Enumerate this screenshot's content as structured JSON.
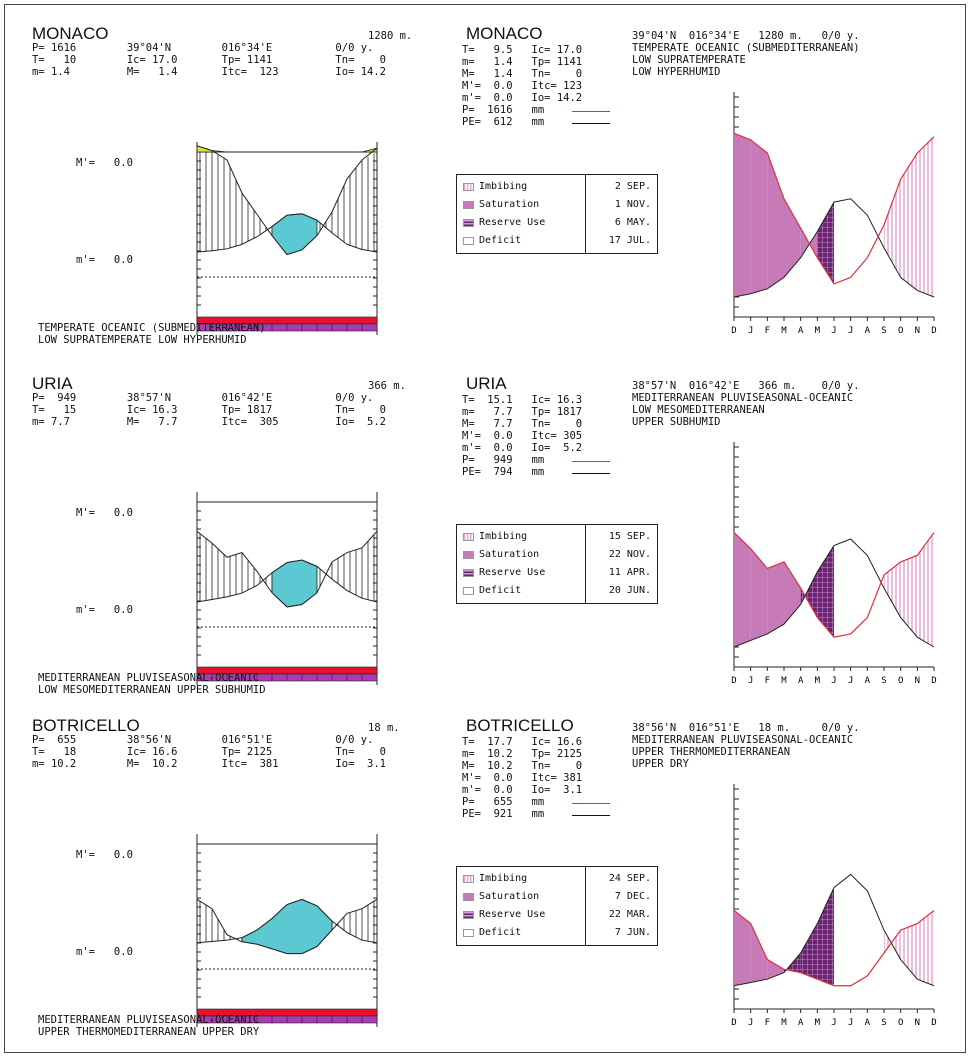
{
  "colors": {
    "precip": "#e0303a",
    "pe": "#111111",
    "surplus": "#e5e62a",
    "dry": "#5bc8d2",
    "saturation": "#c77ab8",
    "imbibing": "#e9a9d8",
    "reserve": "#6a2470",
    "bar_red": "#e8102a",
    "bar_purple": "#a83db0"
  },
  "month_letters": [
    "D",
    "J",
    "F",
    "M",
    "A",
    "M",
    "J",
    "J",
    "A",
    "S",
    "O",
    "N",
    "D"
  ],
  "legend_labels": [
    "Imbibing",
    "Saturation",
    "Reserve Use",
    "Deficit"
  ],
  "icons": [
    "imbibing-swatch",
    "saturation-swatch",
    "reserve-use-swatch",
    "deficit-swatch"
  ],
  "stations": [
    {
      "name": "MONACO",
      "left": {
        "alt": "1280 m.",
        "row1": "P= 1616        39°04'N        016°34'E          0/0 y.",
        "row2": "T=   10        Ic= 17.0       Tp= 1141          Tn=    0",
        "row3": "m= 1.4         M=   1.4       Itc=  123         Io= 14.2",
        "Mp_label": "M'=",
        "Mp_val": "0.0",
        "mp_label": "m'=",
        "mp_val": "0.0",
        "class1": "TEMPERATE OCEANIC (SUBMEDITERRANEAN)",
        "class2": "LOW SUPRATEMPERATE LOW HYPERHUMID"
      },
      "right": {
        "name": "MONACO",
        "stats": "T=   9.5   Ic= 17.0\nm=   1.4   Tp= 1141\nM=   1.4   Tn=    0\nM'=  0.0   Itc= 123\nm'=  0.0   Io= 14.2",
        "p_line": "P=  1616   mm",
        "pe_line": "PE=  612   mm",
        "header": "39°04'N  016°34'E   1280 m.   0/0 y.",
        "class1": "TEMPERATE OCEANIC (SUBMEDITERRANEAN)",
        "class2": "LOW SUPRATEMPERATE",
        "class3": "LOW HYPERHUMID",
        "dates": [
          "2 SEP.",
          "1 NOV.",
          "6 MAY.",
          "17 JUL."
        ]
      },
      "chart_data": {
        "type": "area",
        "x": [
          "D",
          "J",
          "F",
          "M",
          "A",
          "M",
          "J",
          "J",
          "A",
          "S",
          "O",
          "N",
          "D"
        ],
        "series": [
          {
            "name": "P",
            "values": [
              100,
              96,
              88,
              60,
              42,
              24,
              8,
              12,
              24,
              44,
              72,
              88,
              98
            ]
          },
          {
            "name": "PE",
            "values": [
              0,
              2,
              5,
              12,
              24,
              40,
              58,
              60,
              50,
              30,
              12,
              4,
              0
            ]
          }
        ],
        "ylim": [
          0,
          110
        ]
      }
    },
    {
      "name": "URIA",
      "left": {
        "alt": "366 m.",
        "row1": "P=  949        38°57'N        016°42'E          0/0 y.",
        "row2": "T=   15        Ic= 16.3       Tp= 1817          Tn=    0",
        "row3": "m= 7.7         M=   7.7       Itc=  305         Io=  5.2",
        "Mp_label": "M'=",
        "Mp_val": "0.0",
        "mp_label": "m'=",
        "mp_val": "0.0",
        "class1": "MEDITERRANEAN PLUVISEASONAL-OCEANIC",
        "class2": "LOW MESOMEDITERRANEAN UPPER SUBHUMID"
      },
      "right": {
        "name": "URIA",
        "stats": "T=  15.1   Ic= 16.3\nm=   7.7   Tp= 1817\nM=   7.7   Tn=    0\nM'=  0.0   Itc= 305\nm'=  0.0   Io=  5.2",
        "p_line": "P=   949   mm",
        "pe_line": "PE=  794   mm",
        "header": "38°57'N  016°42'E   366 m.    0/0 y.",
        "class1": "MEDITERRANEAN PLUVISEASONAL-OCEANIC",
        "class2": "LOW MESOMEDITERRANEAN",
        "class3": "UPPER SUBHUMID",
        "dates": [
          "15 SEP.",
          "22 NOV.",
          "11 APR.",
          "20 JUN."
        ]
      },
      "chart_data": {
        "type": "area",
        "x": [
          "D",
          "J",
          "F",
          "M",
          "A",
          "M",
          "J",
          "J",
          "A",
          "S",
          "O",
          "N",
          "D"
        ],
        "series": [
          {
            "name": "P",
            "values": [
              70,
              60,
              48,
              52,
              36,
              18,
              6,
              8,
              18,
              44,
              52,
              56,
              70
            ]
          },
          {
            "name": "PE",
            "values": [
              0,
              4,
              8,
              14,
              26,
              46,
              62,
              66,
              56,
              36,
              18,
              6,
              0
            ]
          }
        ],
        "ylim": [
          0,
          110
        ]
      }
    },
    {
      "name": "BOTRICELLO",
      "left": {
        "alt": "18 m.",
        "row1": "P=  655        38°56'N        016°51'E          0/0 y.",
        "row2": "T=   18        Ic= 16.6       Tp= 2125          Tn=    0",
        "row3": "m= 10.2        M=  10.2       Itc=  381         Io=  3.1",
        "Mp_label": "M'=",
        "Mp_val": "0.0",
        "mp_label": "m'=",
        "mp_val": "0.0",
        "class1": "MEDITERRANEAN PLUVISEASONAL-OCEANIC",
        "class2": "UPPER THERMOMEDITERRANEAN UPPER DRY"
      },
      "right": {
        "name": "BOTRICELLO",
        "stats": "T=  17.7   Ic= 16.6\nm=  10.2   Tp= 2125\nM=  10.2   Tn=    0\nM'=  0.0   Itc= 381\nm'=  0.0   Io=  3.1",
        "p_line": "P=   655   mm",
        "pe_line": "PE=  921   mm",
        "header": "38°56'N  016°51'E   18 m.     0/0 y.",
        "class1": "MEDITERRANEAN PLUVISEASONAL-OCEANIC",
        "class2": "UPPER THERMOMEDITERRANEAN",
        "class3": "UPPER DRY",
        "dates": [
          "24 SEP.",
          "7 DEC.",
          "22 MAR.",
          "7 JUN."
        ]
      },
      "chart_data": {
        "type": "area",
        "x": [
          "D",
          "J",
          "F",
          "M",
          "A",
          "M",
          "J",
          "J",
          "A",
          "S",
          "O",
          "N",
          "D"
        ],
        "series": [
          {
            "name": "P",
            "values": [
              48,
              40,
              18,
              12,
              10,
              6,
              2,
              2,
              8,
              22,
              36,
              40,
              48
            ]
          },
          {
            "name": "PE",
            "values": [
              2,
              4,
              6,
              10,
              22,
              40,
              62,
              70,
              60,
              36,
              18,
              6,
              2
            ]
          }
        ],
        "ylim": [
          0,
          110
        ]
      }
    }
  ]
}
